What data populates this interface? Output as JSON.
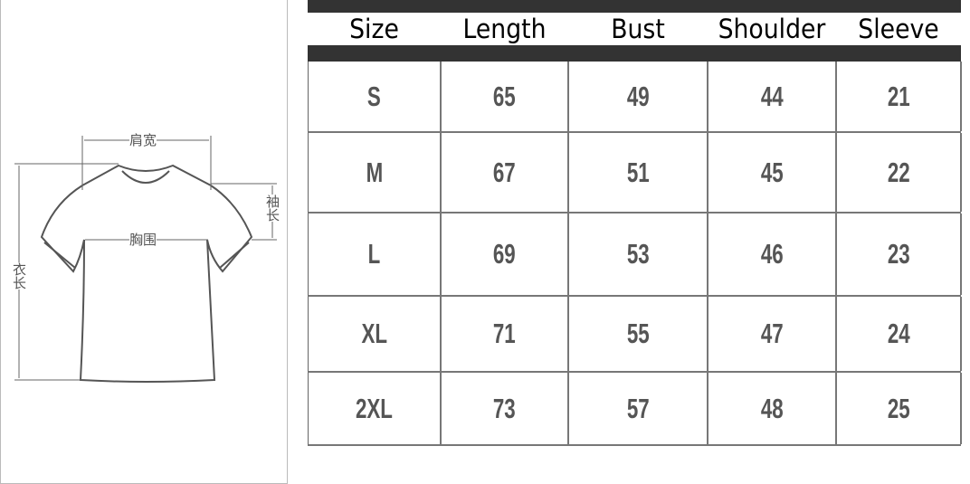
{
  "diagram": {
    "shoulder_label": "肩宽",
    "bust_label": "胸围",
    "sleeve_label": "袖长",
    "length_label": "衣长"
  },
  "table": {
    "headers": [
      "Size",
      "Length",
      "Bust",
      "Shoulder",
      "Sleeve"
    ],
    "rows": [
      [
        "S",
        "65",
        "49",
        "44",
        "21"
      ],
      [
        "M",
        "67",
        "51",
        "45",
        "22"
      ],
      [
        "L",
        "69",
        "53",
        "46",
        "23"
      ],
      [
        "XL",
        "71",
        "55",
        "47",
        "24"
      ],
      [
        "2XL",
        "73",
        "57",
        "48",
        "25"
      ]
    ]
  },
  "colors": {
    "bar": "#333333",
    "value_text": "#555555"
  }
}
